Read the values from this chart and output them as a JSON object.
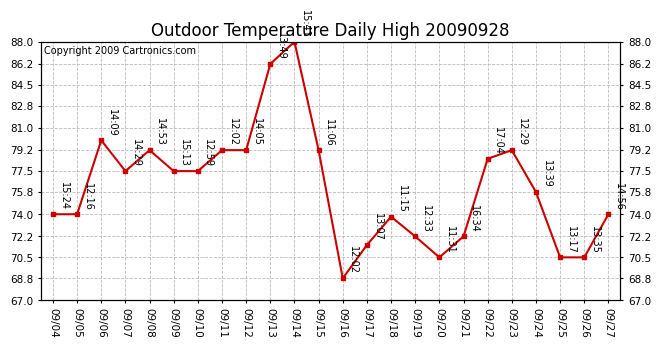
{
  "title": "Outdoor Temperature Daily High 20090928",
  "copyright": "Copyright 2009 Cartronics.com",
  "dates": [
    "09/04",
    "09/05",
    "09/06",
    "09/07",
    "09/08",
    "09/09",
    "09/10",
    "09/11",
    "09/12",
    "09/13",
    "09/14",
    "09/15",
    "09/16",
    "09/17",
    "09/18",
    "09/19",
    "09/20",
    "09/21",
    "09/22",
    "09/23",
    "09/24",
    "09/25",
    "09/26",
    "09/27"
  ],
  "values": [
    74.0,
    74.0,
    80.0,
    77.5,
    79.2,
    77.5,
    77.5,
    79.2,
    79.2,
    86.2,
    88.0,
    79.2,
    68.8,
    71.5,
    73.8,
    72.2,
    70.5,
    72.2,
    78.5,
    79.2,
    75.8,
    70.5,
    70.5,
    74.0
  ],
  "point_labels": [
    "15:24",
    "12:16",
    "14:09",
    "14:29",
    "14:53",
    "15:13",
    "12:59",
    "12:02",
    "14:05",
    "13:49",
    "15:41",
    "11:06",
    "12:02",
    "13:07",
    "11:15",
    "12:33",
    "11:31",
    "16:34",
    "17:04",
    "12:29",
    "13:39",
    "13:17",
    "13:35",
    "14:56"
  ],
  "line_color": "#cc0000",
  "marker_color": "#cc0000",
  "background_color": "#ffffff",
  "grid_color": "#bbbbbb",
  "ylim": [
    67.0,
    88.0
  ],
  "yticks": [
    67.0,
    68.8,
    70.5,
    72.2,
    74.0,
    75.8,
    77.5,
    79.2,
    81.0,
    82.8,
    84.5,
    86.2,
    88.0
  ],
  "title_fontsize": 12,
  "copyright_fontsize": 7,
  "label_fontsize": 7
}
